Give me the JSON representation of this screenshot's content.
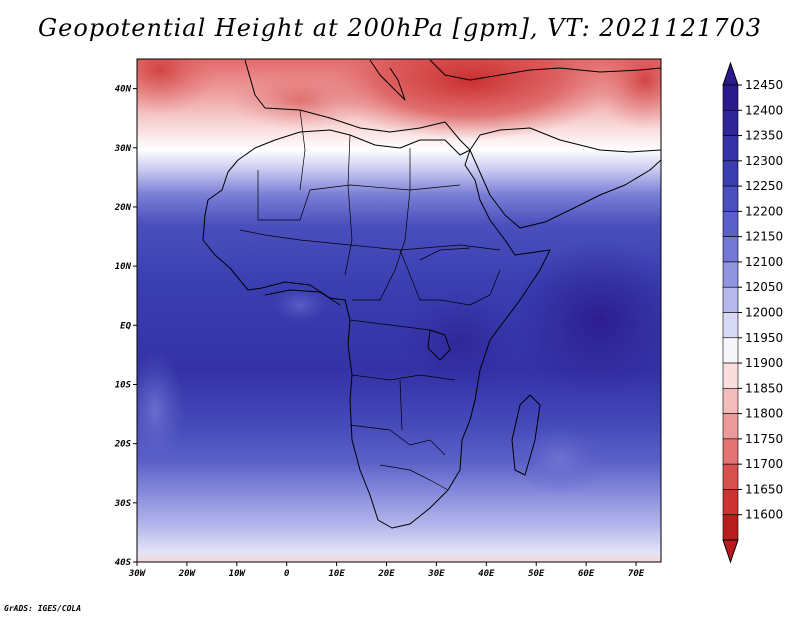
{
  "title": "Geopotential Height at 200hPa [gpm], VT: 2021121703",
  "credit": "GrADS: IGES/COLA",
  "axes": {
    "x_ticks": [
      "30W",
      "20W",
      "10W",
      "0",
      "10E",
      "20E",
      "30E",
      "40E",
      "50E",
      "60E",
      "70E"
    ],
    "x_values": [
      -30,
      -20,
      -10,
      0,
      10,
      20,
      30,
      40,
      50,
      60,
      70
    ],
    "y_ticks": [
      "40N",
      "30N",
      "20N",
      "10N",
      "EQ",
      "10S",
      "20S",
      "30S",
      "40S"
    ],
    "y_values": [
      40,
      30,
      20,
      10,
      0,
      -10,
      -20,
      -30,
      -40
    ],
    "lon_range": [
      -30,
      75
    ],
    "lat_range": [
      -40,
      45
    ]
  },
  "colorbar": {
    "labels": [
      "12450",
      "12400",
      "12350",
      "12300",
      "12250",
      "12200",
      "12150",
      "12100",
      "12050",
      "12000",
      "11950",
      "11900",
      "11850",
      "11800",
      "11750",
      "11700",
      "11650",
      "11600"
    ],
    "colors": [
      "#2a1a8c",
      "#2f2598",
      "#3432a6",
      "#3a3eb0",
      "#4a4fbd",
      "#5b60c8",
      "#7478d4",
      "#9296e0",
      "#b6b8ec",
      "#d8d9f5",
      "#f6f6fb",
      "#f9dede",
      "#f2bcbc",
      "#ea9a9a",
      "#e27474",
      "#d85050",
      "#cc3232",
      "#b91c1c"
    ]
  }
}
